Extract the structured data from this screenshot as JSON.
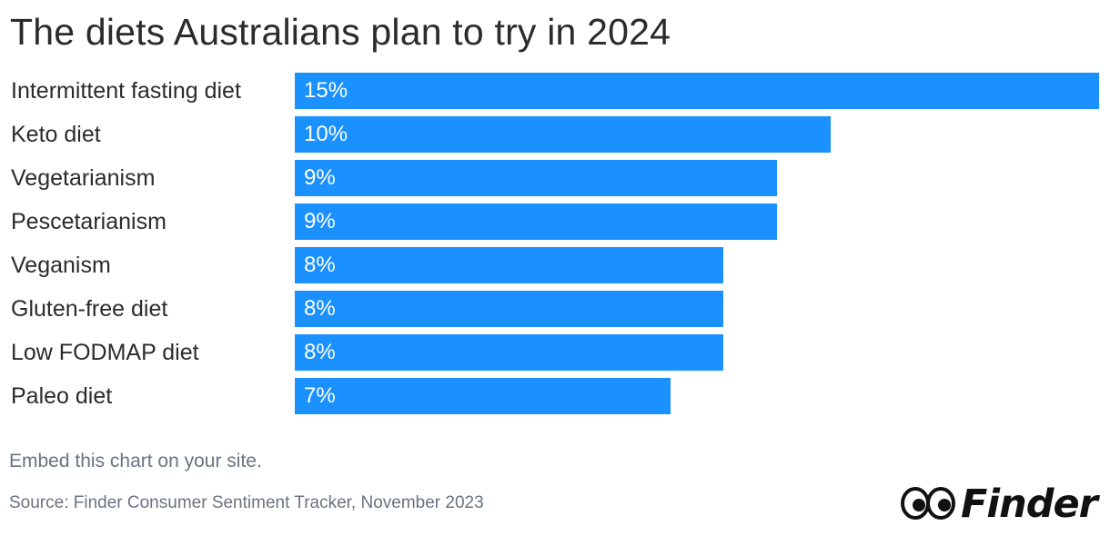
{
  "title": "The diets Australians plan to try in 2024",
  "embed_text": "Embed this chart on your site.",
  "source": "Source: Finder Consumer Sentiment Tracker, November 2023",
  "logo": {
    "text": "Finder",
    "icon": "finder-eyes-icon"
  },
  "colors": {
    "bar": "#1a91ff",
    "bar_label": "#ffffff",
    "text": "#2b2b2b",
    "muted": "#6b7380"
  },
  "chart_data": {
    "type": "bar",
    "orientation": "horizontal",
    "title": "The diets Australians plan to try in 2024",
    "categories": [
      "Intermittent fasting diet",
      "Keto diet",
      "Vegetarianism",
      "Pescetarianism",
      "Veganism",
      "Gluten-free diet",
      "Low FODMAP diet",
      "Paleo diet"
    ],
    "values": [
      15,
      10,
      9,
      9,
      8,
      8,
      8,
      7
    ],
    "value_labels": [
      "15%",
      "10%",
      "9%",
      "9%",
      "8%",
      "8%",
      "8%",
      "7%"
    ],
    "unit": "%",
    "xlim": [
      0,
      15
    ],
    "grid": false,
    "legend": "none"
  }
}
